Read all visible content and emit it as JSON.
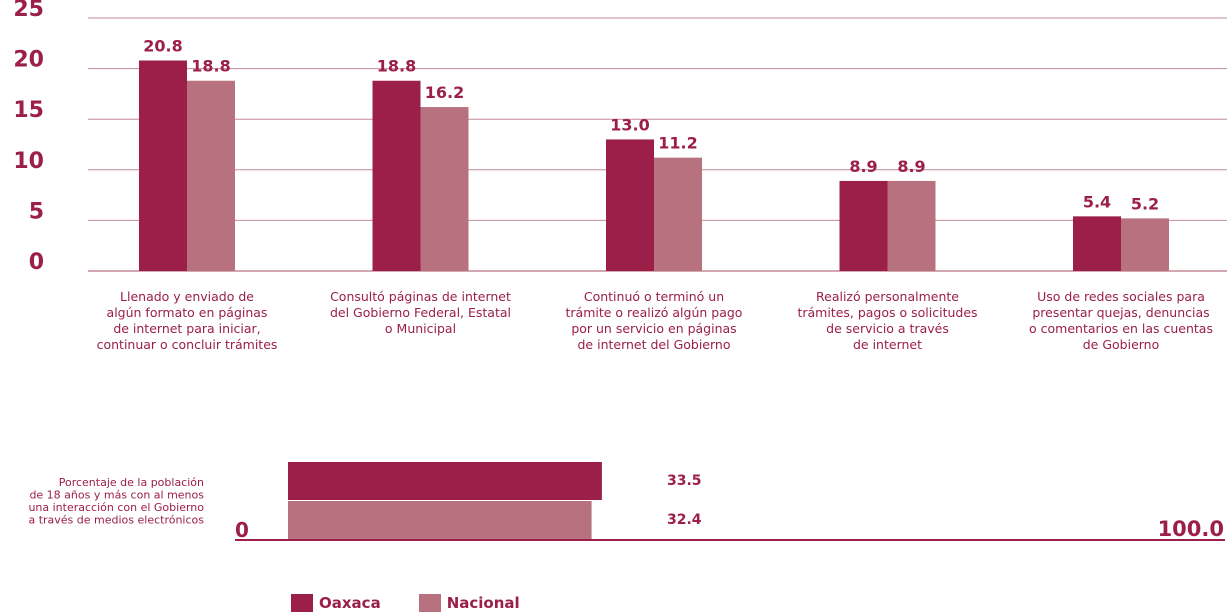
{
  "colors": {
    "oaxaca": "#9b1f48",
    "nacional": "#b8727f",
    "text": "#9b1f48",
    "grid": "#c58b96"
  },
  "legend": {
    "items": [
      {
        "label": "Oaxaca",
        "color": "#9b1f48"
      },
      {
        "label": "Nacional",
        "color": "#b8727f"
      }
    ]
  },
  "chart_data": [
    {
      "type": "bar",
      "ylim": [
        0,
        25
      ],
      "yticks": [
        "0",
        "5",
        "10",
        "15",
        "20",
        "25"
      ],
      "grid": true,
      "categories": [
        [
          "Llenado y enviado de",
          "algún formato en páginas",
          "de internet para iniciar,",
          "continuar o concluir trámites"
        ],
        [
          "Consultó páginas de internet",
          "del Gobierno Federal, Estatal",
          "o Municipal"
        ],
        [
          "Continuó o  terminó un",
          "trámite o realizó algún pago",
          "por un servicio en páginas",
          "de internet del Gobierno"
        ],
        [
          "Realizó personalmente",
          "trámites, pagos o solicitudes",
          "de servicio a través",
          "de internet"
        ],
        [
          "Uso de redes sociales para",
          "presentar quejas, denuncias",
          "o comentarios en las cuentas",
          "de Gobierno"
        ]
      ],
      "series": [
        {
          "name": "Oaxaca",
          "values": [
            20.8,
            18.8,
            13.0,
            8.9,
            5.4
          ],
          "labels": [
            "20.8",
            "18.8",
            "13.0",
            "8.9",
            "5.4"
          ]
        },
        {
          "name": "Nacional",
          "values": [
            18.8,
            16.2,
            11.2,
            8.9,
            5.2
          ],
          "labels": [
            "18.8",
            "16.2",
            "11.2",
            "8.9",
            "5.2"
          ]
        }
      ],
      "legend": "bottom"
    },
    {
      "type": "bar",
      "orientation": "horizontal",
      "category_label": [
        "Porcentaje de la población",
        "de 18 años y más con al menos",
        "una interacción con el Gobierno",
        "a través de medios electrónicos"
      ],
      "xlim": [
        0,
        100
      ],
      "axis_min_label": "0",
      "axis_max_label": "100.0",
      "series": [
        {
          "name": "Oaxaca",
          "value": 33.5,
          "label": "33.5"
        },
        {
          "name": "Nacional",
          "value": 32.4,
          "label": "32.4"
        }
      ]
    }
  ]
}
